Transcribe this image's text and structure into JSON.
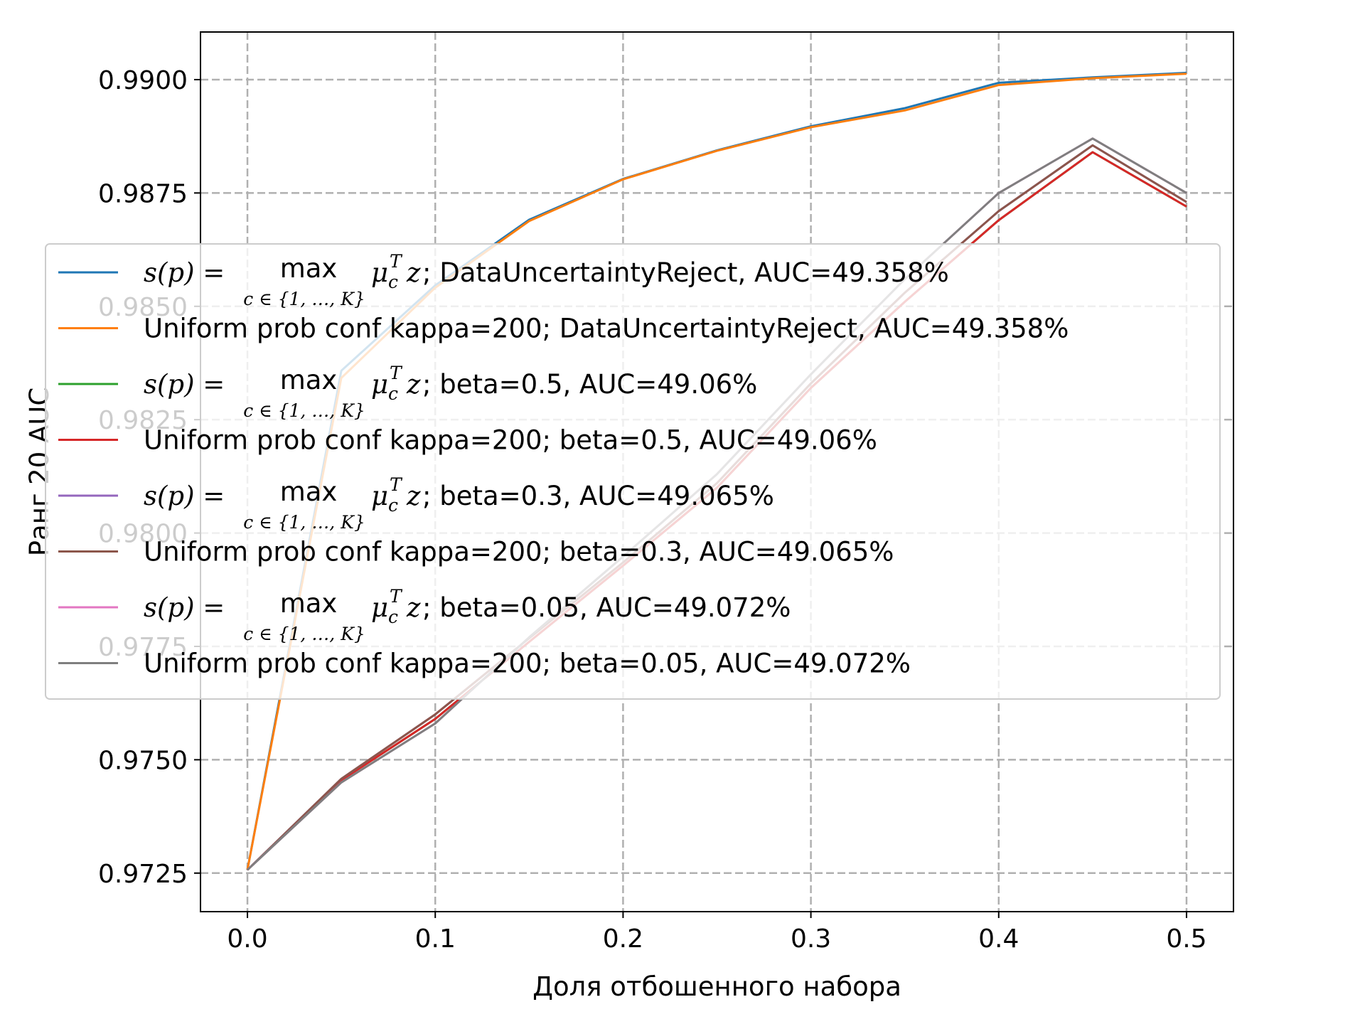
{
  "chart_data": {
    "type": "line",
    "xlabel": "Доля отбошенного набора",
    "ylabel": "Ранг 20 AUC",
    "xlim": [
      -0.025,
      0.525
    ],
    "ylim": [
      0.97165,
      0.99105
    ],
    "x_ticks": [
      "0.0",
      "0.1",
      "0.2",
      "0.3",
      "0.4",
      "0.5"
    ],
    "y_ticks": [
      "0.9725",
      "0.9750",
      "0.9775",
      "0.9800",
      "0.9825",
      "0.9850",
      "0.9875",
      "0.9900"
    ],
    "grid": true,
    "legend_position": "center",
    "x": [
      0.0,
      0.05,
      0.1,
      0.15,
      0.2,
      0.25,
      0.3,
      0.35,
      0.4,
      0.45,
      0.5
    ],
    "series": [
      {
        "name": "s(p) = max_{c∈{1,…,K}} μ_c^T z;  DataUncertaintyReject, AUC=49.358%",
        "color": "#1f77b4",
        "values": [
          0.97257,
          0.98358,
          0.98546,
          0.98691,
          0.98781,
          0.98844,
          0.98897,
          0.98937,
          0.98993,
          0.99005,
          0.99015
        ]
      },
      {
        "name": "Uniform prob conf kappa=200;  DataUncertaintyReject, AUC=49.358%",
        "color": "#ff7f0e",
        "values": [
          0.97257,
          0.98342,
          0.98541,
          0.98688,
          0.9878,
          0.98843,
          0.98895,
          0.98932,
          0.98988,
          0.99003,
          0.99013
        ]
      },
      {
        "name": "s(p) = max_{c∈{1,…,K}} μ_c^T z;  beta=0.5, AUC=49.06%",
        "color": "#2ca02c",
        "values": [
          0.97257,
          0.97455,
          0.9759,
          0.9776,
          0.97928,
          0.981,
          0.9832,
          0.9851,
          0.9869,
          0.9884,
          0.9872
        ]
      },
      {
        "name": "Uniform prob conf kappa=200;  beta=0.5, AUC=49.06%",
        "color": "#d62728",
        "values": [
          0.97257,
          0.97455,
          0.9759,
          0.9776,
          0.97928,
          0.981,
          0.9832,
          0.9851,
          0.9869,
          0.9884,
          0.9872
        ]
      },
      {
        "name": "s(p) = max_{c∈{1,…,K}} μ_c^T z;  beta=0.3, AUC=49.065%",
        "color": "#9467bd",
        "values": [
          0.97257,
          0.97458,
          0.976,
          0.97768,
          0.97935,
          0.9811,
          0.9833,
          0.9853,
          0.9871,
          0.98855,
          0.9873
        ]
      },
      {
        "name": "Uniform prob conf kappa=200;  beta=0.3, AUC=49.065%",
        "color": "#8c564b",
        "values": [
          0.97257,
          0.97458,
          0.976,
          0.97768,
          0.97935,
          0.9811,
          0.9833,
          0.9853,
          0.9871,
          0.98855,
          0.9873
        ]
      },
      {
        "name": "s(p) = max_{c∈{1,…,K}} μ_c^T z;  beta=0.05, AUC=49.072%",
        "color": "#e377c2",
        "values": [
          0.97257,
          0.9745,
          0.9758,
          0.9777,
          0.97948,
          0.9813,
          0.9835,
          0.9856,
          0.9875,
          0.9887,
          0.9875
        ]
      },
      {
        "name": "Uniform prob conf kappa=200;  beta=0.05, AUC=49.072%",
        "color": "#7f7f7f",
        "values": [
          0.97257,
          0.9745,
          0.9758,
          0.9777,
          0.97948,
          0.9813,
          0.9835,
          0.9856,
          0.9875,
          0.9887,
          0.9875
        ]
      }
    ],
    "legend": [
      {
        "kind": "math",
        "color": "#1f77b4",
        "suffix": ";  DataUncertaintyReject, AUC=49.358%"
      },
      {
        "kind": "text",
        "color": "#ff7f0e",
        "text": "Uniform prob conf kappa=200;  DataUncertaintyReject, AUC=49.358%"
      },
      {
        "kind": "math",
        "color": "#2ca02c",
        "suffix": ";  beta=0.5, AUC=49.06%"
      },
      {
        "kind": "text",
        "color": "#d62728",
        "text": "Uniform prob conf kappa=200;  beta=0.5, AUC=49.06%"
      },
      {
        "kind": "math",
        "color": "#9467bd",
        "suffix": ";  beta=0.3, AUC=49.065%"
      },
      {
        "kind": "text",
        "color": "#8c564b",
        "text": "Uniform prob conf kappa=200;  beta=0.3, AUC=49.065%"
      },
      {
        "kind": "math",
        "color": "#e377c2",
        "suffix": ";  beta=0.05, AUC=49.072%"
      },
      {
        "kind": "text",
        "color": "#7f7f7f",
        "text": "Uniform prob conf kappa=200;  beta=0.05, AUC=49.072%"
      }
    ],
    "math_label": {
      "lhs": "s(p) = ",
      "op": "max",
      "sub": "c ∈ {1, …, K}",
      "mu": "μ",
      "mu_sub": "c",
      "mu_sup": "T",
      "z": "z"
    }
  }
}
